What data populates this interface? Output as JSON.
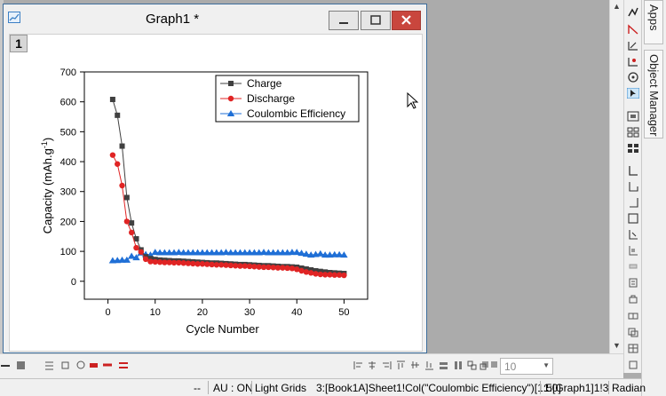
{
  "window": {
    "title": "Graph1 *",
    "layer_number": "1"
  },
  "side_tabs": [
    "Apps",
    "Object Manager"
  ],
  "toolbar": {
    "zoom_value": "10"
  },
  "status": {
    "dashes": "--",
    "au": "AU : ON",
    "theme": "Light Grids",
    "column": "3:[Book1A]Sheet1!Col(\"Coulombic Efficiency\")[1:50]",
    "graph": "1:[Graph1]1!3",
    "angle": "Radian"
  },
  "chart_data": {
    "type": "line",
    "xlabel": "Cycle Number",
    "ylabel": "Capacity (mAh.g-1)",
    "ylabel_parts": {
      "main": "Capacity (mAh.g",
      "sup": "-1",
      "end": ")"
    },
    "xlim": [
      -5,
      55
    ],
    "ylim": [
      -60,
      700
    ],
    "xticks": [
      0,
      10,
      20,
      30,
      40,
      50
    ],
    "yticks": [
      0,
      100,
      200,
      300,
      400,
      500,
      600,
      700
    ],
    "legend_position": "top-right",
    "x": [
      1,
      2,
      3,
      4,
      5,
      6,
      7,
      8,
      9,
      10,
      11,
      12,
      13,
      14,
      15,
      16,
      17,
      18,
      19,
      20,
      21,
      22,
      23,
      24,
      25,
      26,
      27,
      28,
      29,
      30,
      31,
      32,
      33,
      34,
      35,
      36,
      37,
      38,
      39,
      40,
      41,
      42,
      43,
      44,
      45,
      46,
      47,
      48,
      49,
      50
    ],
    "series": [
      {
        "name": "Charge",
        "color": "#404040",
        "marker": "square",
        "values": [
          608,
          555,
          452,
          280,
          195,
          142,
          105,
          82,
          76,
          73,
          71,
          70,
          69,
          68,
          68,
          67,
          66,
          65,
          64,
          63,
          62,
          61,
          61,
          60,
          59,
          58,
          57,
          56,
          56,
          55,
          54,
          53,
          52,
          52,
          51,
          50,
          49,
          49,
          48,
          47,
          44,
          41,
          38,
          35,
          33,
          31,
          29,
          28,
          27,
          26
        ]
      },
      {
        "name": "Discharge",
        "color": "#e02424",
        "marker": "circle",
        "values": [
          422,
          392,
          320,
          200,
          163,
          112,
          98,
          74,
          66,
          65,
          64,
          63,
          63,
          62,
          62,
          61,
          60,
          59,
          58,
          58,
          57,
          56,
          55,
          55,
          54,
          53,
          52,
          51,
          51,
          50,
          49,
          48,
          47,
          47,
          46,
          45,
          45,
          44,
          43,
          40,
          35,
          31,
          28,
          25,
          23,
          22,
          22,
          21,
          21,
          20
        ]
      },
      {
        "name": "Coulombic Efficiency",
        "color": "#1f6fd6",
        "marker": "triangle",
        "values": [
          69,
          70,
          71,
          71,
          84,
          79,
          95,
          90,
          88,
          97,
          96,
          96,
          96,
          96,
          97,
          96,
          96,
          96,
          96,
          96,
          96,
          96,
          96,
          96,
          97,
          96,
          96,
          96,
          96,
          96,
          96,
          96,
          97,
          96,
          96,
          96,
          96,
          96,
          97,
          97,
          94,
          91,
          88,
          90,
          92,
          88,
          88,
          89,
          89,
          88
        ]
      }
    ]
  }
}
